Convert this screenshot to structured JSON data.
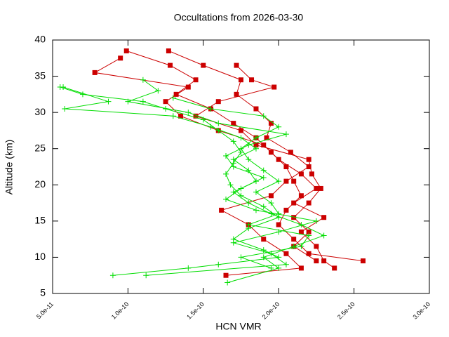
{
  "chart_data": {
    "type": "line",
    "title": "Occultations from 2026-03-30",
    "x_label": "HCN VMR",
    "y_label": "Altitude (km)",
    "xlim": [
      5e-11,
      3e-10
    ],
    "xticks": [
      {
        "value": 5e-11,
        "label": "5.0e-11"
      },
      {
        "value": 1e-10,
        "label": "1.0e-10"
      },
      {
        "value": 1.5e-10,
        "label": "1.5e-10"
      },
      {
        "value": 2e-10,
        "label": "2.0e-10"
      },
      {
        "value": 2.5e-10,
        "label": "2.5e-10"
      },
      {
        "value": 3e-10,
        "label": "3.0e-10"
      }
    ],
    "ylim": [
      5,
      40
    ],
    "yticks": [
      5,
      10,
      15,
      20,
      25,
      30,
      35,
      40
    ],
    "series": [
      {
        "color": "#cc0000",
        "marker": "square",
        "x": [
          9.9e-11,
          1.28e-10,
          1.45e-10,
          1.32e-10,
          1.55e-10,
          1.7e-10,
          1.85e-10,
          1.95e-10,
          2.05e-10,
          2.1e-10,
          2.15e-10,
          2.05e-10,
          2e-10,
          2.1e-10,
          2.2e-10,
          2.56e-10
        ],
        "values": [
          38.5,
          36.5,
          34.5,
          32.5,
          30.5,
          28.5,
          26.5,
          24.5,
          22.5,
          20.5,
          18.5,
          16.5,
          14.5,
          12.5,
          10.5,
          9.5
        ]
      },
      {
        "color": "#cc0000",
        "marker": "square",
        "x": [
          9.5e-11,
          7.8e-11,
          1.4e-10,
          1.25e-10,
          1.35e-10,
          1.6e-10,
          1.9e-10,
          2e-10,
          2.15e-10,
          2.25e-10,
          2.1e-10,
          2.3e-10,
          2.15e-10,
          2.25e-10,
          2.3e-10,
          2.37e-10
        ],
        "values": [
          37.5,
          35.5,
          33.5,
          31.5,
          29.5,
          27.5,
          25.5,
          23.5,
          21.5,
          19.5,
          17.5,
          15.5,
          13.5,
          11.5,
          9.5,
          8.5
        ]
      },
      {
        "color": "#cc0000",
        "marker": "square",
        "x": [
          1.27e-10,
          1.5e-10,
          1.75e-10,
          1.72e-10,
          1.85e-10,
          1.95e-10,
          1.92e-10,
          2.08e-10,
          2.2e-10,
          2.05e-10,
          1.95e-10,
          1.62e-10,
          1.8e-10,
          1.9e-10,
          2.05e-10,
          2.15e-10,
          1.65e-10
        ],
        "values": [
          38.5,
          36.5,
          34.5,
          32.5,
          30.5,
          28.5,
          26.5,
          24.5,
          22.5,
          20.5,
          18.5,
          16.5,
          14.5,
          12.5,
          10.5,
          8.5,
          7.5
        ]
      },
      {
        "color": "#cc0000",
        "marker": "square",
        "x": [
          1.72e-10,
          1.82e-10,
          1.97e-10,
          1.6e-10,
          1.45e-10,
          1.75e-10,
          1.85e-10,
          2.2e-10,
          2.22e-10,
          2.28e-10,
          2.2e-10,
          2.1e-10,
          2.2e-10,
          2.1e-10,
          2.25e-10
        ],
        "values": [
          36.5,
          34.5,
          33.5,
          31.5,
          29.5,
          27.5,
          25.5,
          23.5,
          21.5,
          19.5,
          17.5,
          15.5,
          13.5,
          11.5,
          9.5
        ]
      },
      {
        "color": "#00dd00",
        "marker": "plus",
        "x": [
          5.5e-11,
          7e-11,
          1.1e-10,
          1.25e-10,
          1.5e-10,
          1.6e-10,
          1.7e-10,
          1.75e-10,
          1.7e-10,
          1.65e-10,
          1.68e-10,
          1.75e-10,
          1.9e-10,
          2e-10,
          1.8e-10,
          1.7e-10,
          1.9e-10,
          2e-10,
          1.6e-10,
          1.4e-10,
          9e-11
        ],
        "values": [
          33.5,
          32.5,
          31.5,
          30.5,
          29,
          27.5,
          26,
          24.5,
          23,
          21.5,
          20,
          18.5,
          17,
          15.5,
          14,
          12.5,
          11,
          10,
          9,
          8.5,
          7.5
        ]
      },
      {
        "color": "#00dd00",
        "marker": "plus",
        "x": [
          5.7e-11,
          8.7e-11,
          5.8e-11,
          1.3e-10,
          1.55e-10,
          1.75e-10,
          1.85e-10,
          1.7e-10,
          1.8e-10,
          1.85e-10,
          1.7e-10,
          1.8e-10,
          1.95e-10,
          2.15e-10,
          2.3e-10,
          2.1e-10,
          1.9e-10,
          2e-10,
          1.66e-10
        ],
        "values": [
          33.5,
          31.5,
          30.5,
          29.5,
          28,
          26.5,
          25,
          23.5,
          22,
          20.5,
          19,
          17.5,
          16,
          14.5,
          13,
          11.5,
          10,
          8.5,
          6.5
        ]
      },
      {
        "color": "#00dd00",
        "marker": "plus",
        "x": [
          1.1e-10,
          1.2e-10,
          1e-10,
          1.4e-10,
          1.6e-10,
          2.05e-10,
          1.8e-10,
          1.65e-10,
          1.7e-10,
          1.9e-10,
          1.75e-10,
          1.65e-10,
          1.85e-10,
          2.25e-10,
          2e-10,
          1.7e-10,
          1.95e-10,
          2.05e-10,
          1.12e-10
        ],
        "values": [
          34.5,
          33,
          31.5,
          30,
          28.5,
          27,
          25.5,
          24,
          22.5,
          21,
          19.5,
          18,
          16.5,
          15,
          13.5,
          12,
          10.5,
          9,
          7.5
        ]
      },
      {
        "color": "#00dd00",
        "marker": "plus",
        "x": [
          1.3e-10,
          1.55e-10,
          1.9e-10,
          2e-10,
          1.85e-10,
          1.75e-10,
          1.8e-10,
          1.9e-10,
          2e-10,
          1.85e-10,
          1.95e-10,
          2e-10,
          1.8e-10,
          2.2e-10,
          2.15e-10,
          1.75e-10,
          1.95e-10
        ],
        "values": [
          32,
          30.5,
          29.5,
          28,
          26.5,
          25,
          23.5,
          22,
          20.5,
          19,
          17.5,
          16,
          14.5,
          13,
          11.5,
          10,
          8.5
        ]
      }
    ]
  }
}
